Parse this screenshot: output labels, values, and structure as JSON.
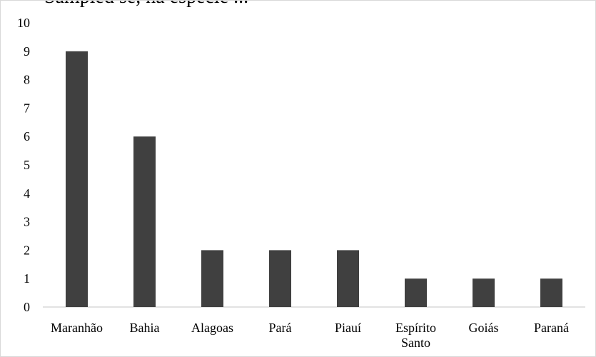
{
  "chart_data": {
    "type": "bar",
    "title": "Sampled se, na especie ...",
    "categories": [
      [
        "Maranhão"
      ],
      [
        "Bahia"
      ],
      [
        "Alagoas"
      ],
      [
        "Pará"
      ],
      [
        "Piauí"
      ],
      [
        "Espírito",
        "Santo"
      ],
      [
        "Goiás"
      ],
      [
        "Paraná"
      ]
    ],
    "values": [
      9,
      6,
      2,
      2,
      2,
      1,
      1,
      1
    ],
    "ylim": [
      0,
      10
    ],
    "yticks": [
      "0",
      "1",
      "2",
      "3",
      "4",
      "5",
      "6",
      "7",
      "8",
      "9",
      "10"
    ],
    "grid": false,
    "colors": {
      "bar": "#404040",
      "axis": "#d9d9d9",
      "frame": "#d9d9d9"
    }
  }
}
